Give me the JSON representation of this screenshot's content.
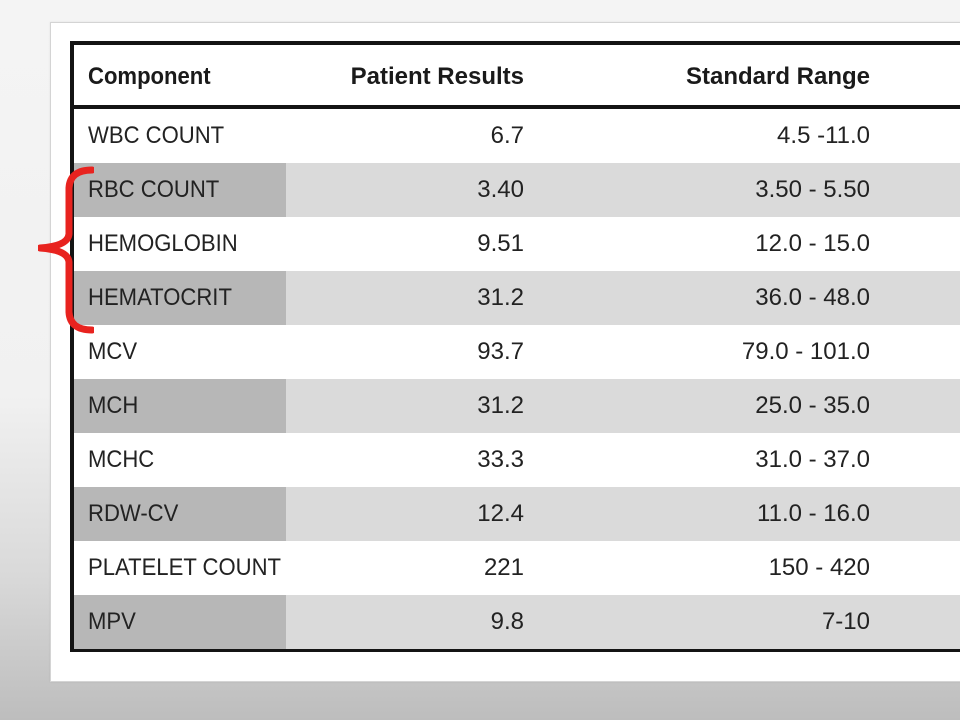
{
  "table": {
    "headers": {
      "component": "Component",
      "patient_results": "Patient Results",
      "standard_range": "Standard Range"
    },
    "rows": [
      {
        "component": "WBC COUNT",
        "result": "6.7",
        "range": "4.5 -11.0"
      },
      {
        "component": "RBC COUNT",
        "result": "3.40",
        "range": "3.50 - 5.50"
      },
      {
        "component": "HEMOGLOBIN",
        "result": "9.51",
        "range": "12.0 - 15.0"
      },
      {
        "component": "HEMATOCRIT",
        "result": "31.2",
        "range": "36.0 - 48.0"
      },
      {
        "component": "MCV",
        "result": "93.7",
        "range": "79.0 - 101.0"
      },
      {
        "component": "MCH",
        "result": "31.2",
        "range": "25.0 - 35.0"
      },
      {
        "component": "MCHC",
        "result": "33.3",
        "range": "31.0 - 37.0"
      },
      {
        "component": "RDW-CV",
        "result": "12.4",
        "range": "11.0 - 16.0"
      },
      {
        "component": "PLATELET COUNT",
        "result": "221",
        "range": "150 - 420"
      },
      {
        "component": "MPV",
        "result": "9.8",
        "range": "7-10"
      }
    ]
  },
  "colors": {
    "annotation_bracket": "#e8231f",
    "shaded_row": "#dadada",
    "shaded_label_cell": "#b7b7b7",
    "border": "#141414"
  }
}
